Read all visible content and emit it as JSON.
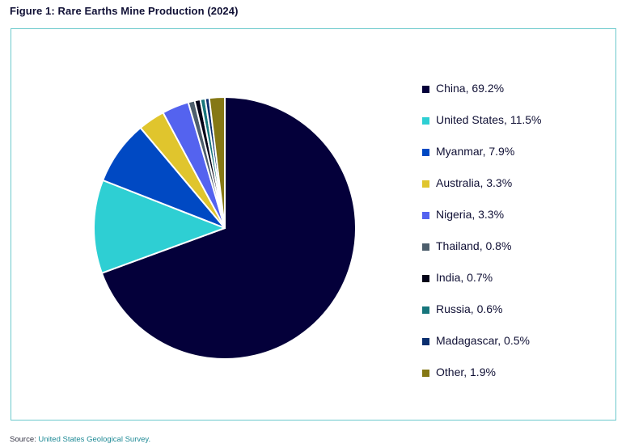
{
  "figure": {
    "title": "Figure 1: Rare Earths Mine Production (2024)"
  },
  "source": {
    "prefix": "Source:",
    "link_text": "United States Geological Survey."
  },
  "chart_data": {
    "type": "pie",
    "title": "Figure 1: Rare Earths Mine Production (2024)",
    "unit": "%",
    "legend_position": "right",
    "slices": [
      {
        "label": "China",
        "value": 69.2,
        "legend": "China, 69.2%",
        "color": "#04003a"
      },
      {
        "label": "United States",
        "value": 11.5,
        "legend": "United States, 11.5%",
        "color": "#2ecfd3"
      },
      {
        "label": "Myanmar",
        "value": 7.9,
        "legend": "Myanmar, 7.9%",
        "color": "#0049c3"
      },
      {
        "label": "Australia",
        "value": 3.3,
        "legend": "Australia, 3.3%",
        "color": "#e0c52d"
      },
      {
        "label": "Nigeria",
        "value": 3.3,
        "legend": "Nigeria, 3.3%",
        "color": "#5463ef"
      },
      {
        "label": "Thailand",
        "value": 0.8,
        "legend": "Thailand, 0.8%",
        "color": "#4d5e6c"
      },
      {
        "label": "India",
        "value": 0.7,
        "legend": "India, 0.7%",
        "color": "#030318"
      },
      {
        "label": "Russia",
        "value": 0.6,
        "legend": "Russia, 0.6%",
        "color": "#17767c"
      },
      {
        "label": "Madagascar",
        "value": 0.5,
        "legend": "Madagascar, 0.5%",
        "color": "#0a2e6e"
      },
      {
        "label": "Other",
        "value": 1.9,
        "legend": "Other, 1.9%",
        "color": "#857815"
      }
    ]
  }
}
